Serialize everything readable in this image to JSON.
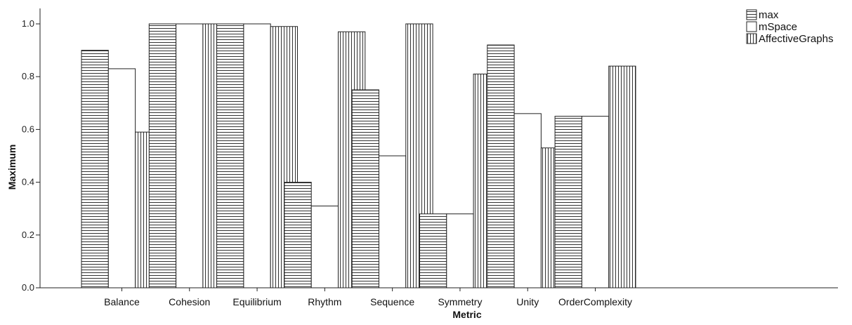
{
  "chart_data": {
    "type": "bar",
    "title": "",
    "xlabel": "Metric",
    "ylabel": "Maximum",
    "ylim": [
      0,
      1.0
    ],
    "yticks": [
      "0.0",
      "0.2",
      "0.4",
      "0.6",
      "0.8",
      "1.0"
    ],
    "grid": false,
    "legend_position": "top-right",
    "categories": [
      "Balance",
      "Cohesion",
      "Equilibrium",
      "Rhythm",
      "Sequence",
      "Symmetry",
      "Unity",
      "OrderComplexity"
    ],
    "series": [
      {
        "name": "max",
        "pattern": "horizontal-lines",
        "values": [
          0.9,
          1.0,
          1.0,
          0.4,
          0.75,
          0.28,
          0.92,
          0.65
        ]
      },
      {
        "name": "mSpace",
        "pattern": "white",
        "values": [
          0.83,
          1.0,
          1.0,
          0.31,
          0.5,
          0.28,
          0.66,
          0.65
        ]
      },
      {
        "name": "AffectiveGraphs",
        "pattern": "vertical-lines",
        "values": [
          0.59,
          1.0,
          0.99,
          0.97,
          1.0,
          0.81,
          0.53,
          0.84
        ]
      }
    ]
  }
}
